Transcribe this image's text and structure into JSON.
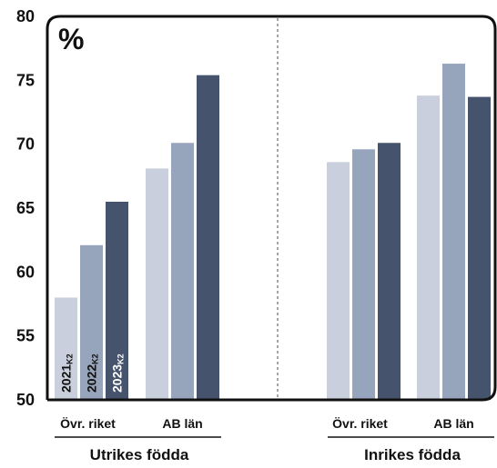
{
  "chart_data": {
    "type": "bar",
    "unit_label": "%",
    "ylim": [
      50,
      80
    ],
    "yticks": [
      50,
      55,
      60,
      65,
      70,
      75,
      80
    ],
    "groups": [
      {
        "label": "Utrikes födda",
        "categories": [
          {
            "label": "Övr. riket",
            "values": [
              58.0,
              62.1,
              65.5
            ]
          },
          {
            "label": "AB län",
            "values": [
              68.1,
              70.1,
              75.4
            ]
          }
        ]
      },
      {
        "label": "Inrikes födda",
        "categories": [
          {
            "label": "Övr. riket",
            "values": [
              68.6,
              69.6,
              70.1
            ]
          },
          {
            "label": "AB län",
            "values": [
              73.8,
              76.3,
              73.7
            ]
          }
        ]
      }
    ],
    "series": [
      {
        "name": "2021",
        "suffix": "K2",
        "color": "#c9cfdc"
      },
      {
        "name": "2022",
        "suffix": "K2",
        "color": "#97a5bc"
      },
      {
        "name": "2023",
        "suffix": "K2",
        "color": "#45546c"
      }
    ],
    "series_label_colors": [
      "#111111",
      "#111111",
      "#ffffff"
    ],
    "frame_color": "#111111",
    "divider_color": "#888888"
  }
}
